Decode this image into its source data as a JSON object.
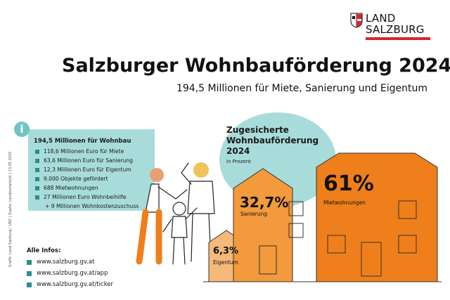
{
  "logo": {
    "line1": "LAND",
    "line2": "SALZBURG",
    "red": "#d7262f"
  },
  "header": {
    "title": "Salzburger Wohnbauförderung 2024",
    "subtitle": "194,5 Millionen für Miete, Sanierung und Eigentum"
  },
  "info": {
    "icon": "info-icon",
    "heading": "194,5 Millionen für Wohnbau",
    "items": [
      "118,6 Millionen Euro für Miete",
      "63,6 Millionen Euro für Sanierung",
      "12,3 Millionen Euro für Eigentum",
      "9.000 Objekte gefördert",
      "688 Mietwohnungen",
      "27 Millionen Euro Wohnbeihilfe"
    ],
    "extra": "+ 9 Millionen Wohnkostenzuschuss"
  },
  "credit": "Grafik: Land Salzburg / LMZ | Quelle: Landesstatistik | 13.05.2025",
  "links": {
    "title": "Alle Infos:",
    "items": [
      "www.salzburg.gv.at",
      "www.salzburg.gv.at/app",
      "www.salzburg.gv.at/ticker"
    ]
  },
  "chart_data": {
    "type": "bar",
    "title": "Zugesicherte Wohnbauförderung 2024",
    "unit": "in Prozent",
    "categories": [
      "Eigentum",
      "Sanierung",
      "Mietwohnungen"
    ],
    "values": [
      6.3,
      32.7,
      61
    ],
    "labels": [
      "6,3%",
      "32,7%",
      "61%"
    ],
    "colors": {
      "light": "#f5b97a",
      "mid": "#f29a3c",
      "dark": "#ef7f1a",
      "teal": "#a8dcdb"
    }
  }
}
